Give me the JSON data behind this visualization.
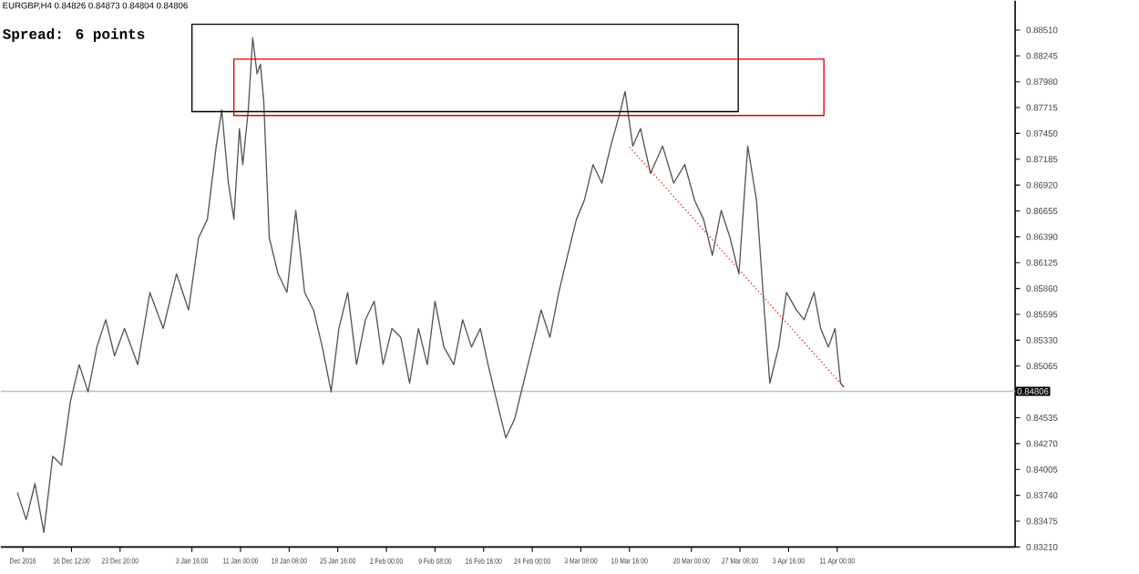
{
  "chart_data": {
    "type": "line",
    "title": "EURGBP,H4  0.84826 0.84873 0.84804 0.84806",
    "subtitle": "Spread: 6 points",
    "xlim": [
      "2016-12-05T20:00",
      "2017-05-07T20:00"
    ],
    "ylim": [
      0.8321,
      0.8881
    ],
    "xticks": [
      {
        "value": "2016-12-09T04:00",
        "label": "Dec 2016"
      },
      {
        "value": "2016-12-16T12:00",
        "label": "16 Dec 12:00"
      },
      {
        "value": "2016-12-23T20:00",
        "label": "23 Dec 20:00"
      },
      {
        "value": "2017-01-03T16:00",
        "label": "3 Jan 16:00"
      },
      {
        "value": "2017-01-11T00:00",
        "label": "11 Jan 00:00"
      },
      {
        "value": "2017-01-18T08:00",
        "label": "18 Jan 08:00"
      },
      {
        "value": "2017-01-25T16:00",
        "label": "25 Jan 16:00"
      },
      {
        "value": "2017-02-02T00:00",
        "label": "2 Feb 00:00"
      },
      {
        "value": "2017-02-09T08:00",
        "label": "9 Feb 08:00"
      },
      {
        "value": "2017-02-16T16:00",
        "label": "16 Feb 16:00"
      },
      {
        "value": "2017-02-24T00:00",
        "label": "24 Feb 00:00"
      },
      {
        "value": "2017-03-03T08:00",
        "label": "3 Mar 08:00"
      },
      {
        "value": "2017-03-10T16:00",
        "label": "10 Mar 16:00"
      },
      {
        "value": "2017-03-20T00:00",
        "label": "20 Mar 00:00"
      },
      {
        "value": "2017-03-27T08:00",
        "label": "27 Mar 08:00"
      },
      {
        "value": "2017-04-03T16:00",
        "label": "3 Apr 16:00"
      },
      {
        "value": "2017-04-11T00:00",
        "label": "11 Apr 00:00"
      }
    ],
    "yticks": [
      {
        "value": 0.8321,
        "label": "0.83210"
      },
      {
        "value": 0.83475,
        "label": "0.83475"
      },
      {
        "value": 0.8374,
        "label": "0.83740"
      },
      {
        "value": 0.84005,
        "label": "0.84005"
      },
      {
        "value": 0.8427,
        "label": "0.84270"
      },
      {
        "value": 0.84535,
        "label": "0.84535"
      },
      {
        "value": 0.85065,
        "label": "0.85065"
      },
      {
        "value": 0.8533,
        "label": "0.85330"
      },
      {
        "value": 0.85595,
        "label": "0.85595"
      },
      {
        "value": 0.8586,
        "label": "0.85860"
      },
      {
        "value": 0.86125,
        "label": "0.86125"
      },
      {
        "value": 0.8639,
        "label": "0.86390"
      },
      {
        "value": 0.86655,
        "label": "0.86655"
      },
      {
        "value": 0.8692,
        "label": "0.86920"
      },
      {
        "value": 0.87185,
        "label": "0.87185"
      },
      {
        "value": 0.8745,
        "label": "0.87450"
      },
      {
        "value": 0.87715,
        "label": "0.87715"
      },
      {
        "value": 0.8798,
        "label": "0.87980"
      },
      {
        "value": 0.88245,
        "label": "0.88245"
      },
      {
        "value": 0.8851,
        "label": "0.88510"
      }
    ],
    "ref_lines": [
      {
        "axis": "y",
        "value": 0.84806,
        "label": "0.84806",
        "color": "#c0c0c0"
      }
    ],
    "series": [
      {
        "color": "#555555",
        "x": [
          "2016-12-08T08:00",
          "2016-12-09T16:00",
          "2016-12-11T00:00",
          "2016-12-12T08:00",
          "2016-12-13T16:00",
          "2016-12-15T00:00",
          "2016-12-16T08:00",
          "2016-12-17T16:00",
          "2016-12-19T00:00",
          "2016-12-20T08:00",
          "2016-12-21T16:00",
          "2016-12-23T00:00",
          "2016-12-24T12:00",
          "2016-12-26T12:00",
          "2016-12-28T08:00",
          "2016-12-30T08:00",
          "2017-01-01T08:00",
          "2017-01-03T04:00",
          "2017-01-04T16:00",
          "2017-01-06T00:00",
          "2017-01-07T08:00",
          "2017-01-08T04:00",
          "2017-01-09T04:00",
          "2017-01-10T00:00",
          "2017-01-10T20:00",
          "2017-01-11T08:00",
          "2017-01-12T04:00",
          "2017-01-12T20:00",
          "2017-01-13T12:00",
          "2017-01-14T00:00",
          "2017-01-14T12:00",
          "2017-01-15T08:00",
          "2017-01-16T16:00",
          "2017-01-18T00:00",
          "2017-01-19T08:00",
          "2017-01-20T16:00",
          "2017-01-22T00:00",
          "2017-01-23T08:00",
          "2017-01-24T16:00",
          "2017-01-25T20:00",
          "2017-01-27T04:00",
          "2017-01-28T12:00",
          "2017-01-29T20:00",
          "2017-01-31T04:00",
          "2017-02-01T12:00",
          "2017-02-02T20:00",
          "2017-02-04T04:00",
          "2017-02-05T12:00",
          "2017-02-06T20:00",
          "2017-02-08T04:00",
          "2017-02-09T08:00",
          "2017-02-10T16:00",
          "2017-02-12T04:00",
          "2017-02-13T12:00",
          "2017-02-14T20:00",
          "2017-02-16T04:00",
          "2017-02-17T08:00",
          "2017-02-18T16:00",
          "2017-02-20T00:00",
          "2017-02-21T08:00",
          "2017-02-22T16:00",
          "2017-02-24T00:00",
          "2017-02-25T08:00",
          "2017-02-26T16:00",
          "2017-02-28T00:00",
          "2017-03-01T08:00",
          "2017-03-02T16:00",
          "2017-03-03T20:00",
          "2017-03-05T04:00",
          "2017-03-06T12:00",
          "2017-03-07T20:00",
          "2017-03-09T08:00",
          "2017-03-10T00:00",
          "2017-03-11T04:00",
          "2017-03-12T08:00",
          "2017-03-13T20:00",
          "2017-03-15T16:00",
          "2017-03-17T08:00",
          "2017-03-19T00:00",
          "2017-03-20T12:00",
          "2017-03-21T20:00",
          "2017-03-23T04:00",
          "2017-03-24T12:00",
          "2017-03-25T20:00",
          "2017-03-27T04:00",
          "2017-03-28T12:00",
          "2017-03-29T20:00",
          "2017-03-31T00:00",
          "2017-03-31T20:00",
          "2017-04-02T04:00",
          "2017-04-03T08:00",
          "2017-04-04T20:00",
          "2017-04-06T00:00",
          "2017-04-07T12:00",
          "2017-04-08T12:00",
          "2017-04-09T16:00",
          "2017-04-10T16:00",
          "2017-04-11T12:00",
          "2017-04-12T00:00"
        ],
        "values": [
          0.8377,
          0.8349,
          0.8386,
          0.8336,
          0.8414,
          0.8405,
          0.847,
          0.8508,
          0.848,
          0.8526,
          0.8554,
          0.8517,
          0.8545,
          0.8508,
          0.8582,
          0.8545,
          0.8601,
          0.8564,
          0.8638,
          0.8657,
          0.8732,
          0.8769,
          0.8694,
          0.8657,
          0.875,
          0.8713,
          0.8769,
          0.8843,
          0.8806,
          0.8816,
          0.8778,
          0.8638,
          0.8601,
          0.8582,
          0.8666,
          0.8582,
          0.8564,
          0.8526,
          0.848,
          0.8545,
          0.8582,
          0.8508,
          0.8554,
          0.8573,
          0.8508,
          0.8545,
          0.8536,
          0.8489,
          0.8545,
          0.8508,
          0.8573,
          0.8526,
          0.8508,
          0.8554,
          0.8526,
          0.8545,
          0.8508,
          0.847,
          0.8433,
          0.8452,
          0.8489,
          0.8526,
          0.8564,
          0.8536,
          0.8582,
          0.862,
          0.8657,
          0.8676,
          0.8713,
          0.8694,
          0.8732,
          0.8769,
          0.8788,
          0.8732,
          0.875,
          0.8704,
          0.8732,
          0.8694,
          0.8713,
          0.8676,
          0.8657,
          0.862,
          0.8666,
          0.8638,
          0.8601,
          0.8732,
          0.8676,
          0.8564,
          0.8489,
          0.8526,
          0.8582,
          0.8564,
          0.8554,
          0.8582,
          0.8545,
          0.8526,
          0.8545,
          0.8489,
          0.8485
        ]
      },
      {
        "color": "#e02020",
        "line_style": "dotted",
        "x": [
          "2017-03-10T16:00",
          "2017-04-12T00:00"
        ],
        "values": [
          0.8731,
          0.8485
        ]
      }
    ]
  }
}
